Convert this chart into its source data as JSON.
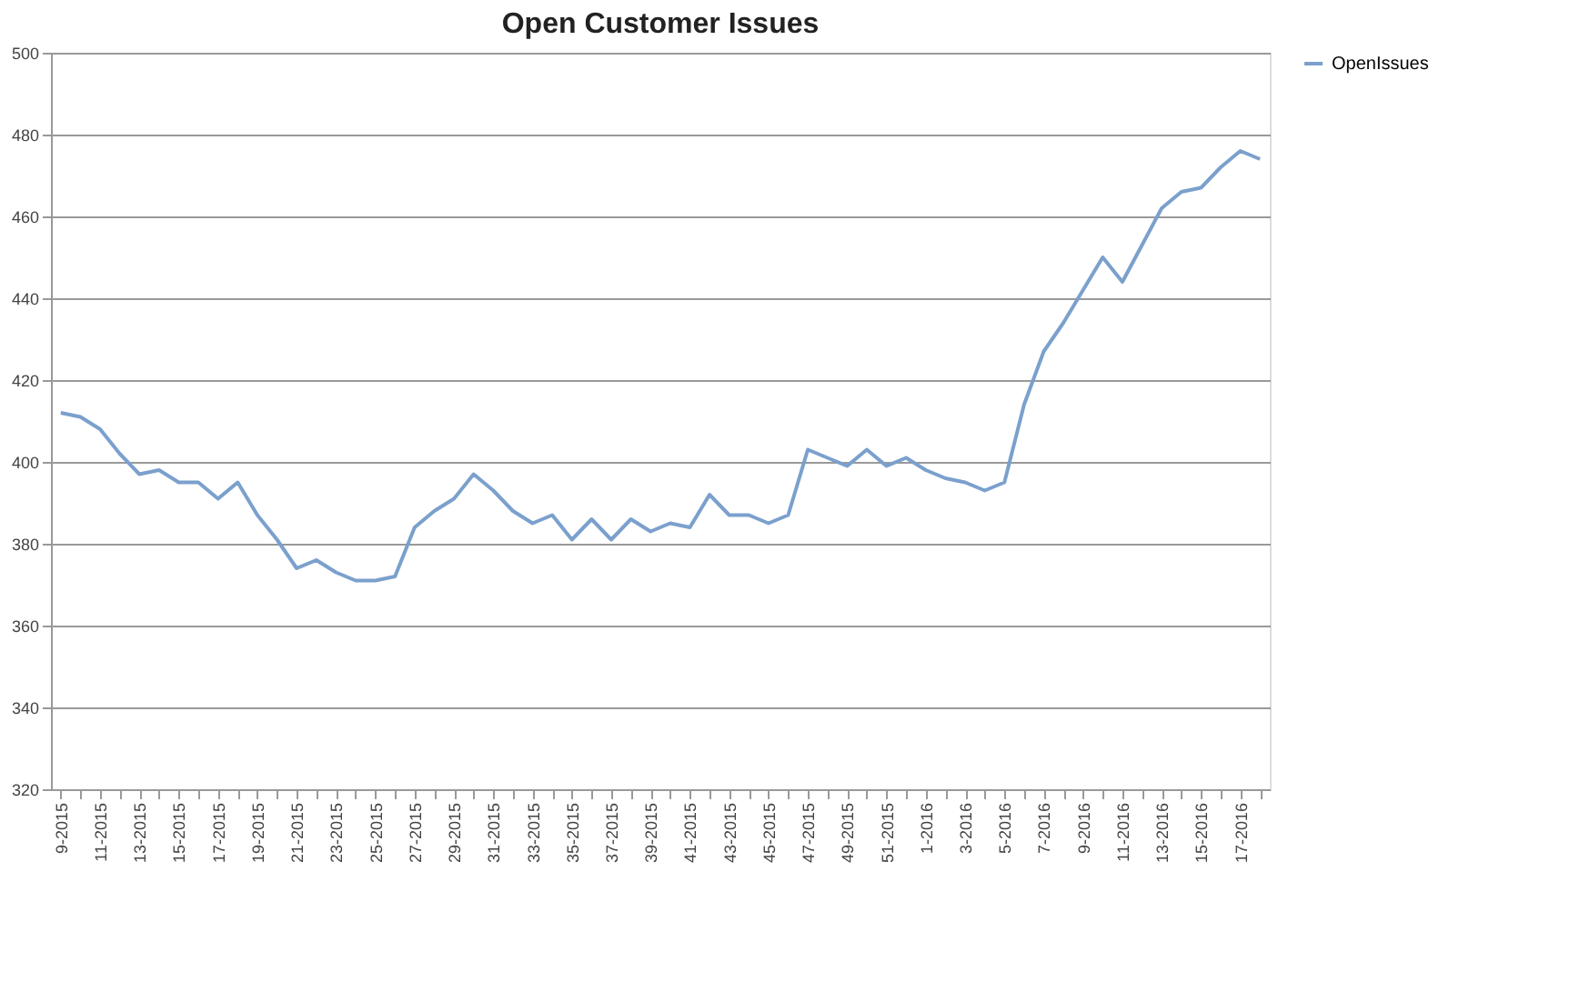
{
  "chart_data": {
    "type": "line",
    "title": "Open Customer Issues",
    "categories": [
      "9-2015",
      null,
      "11-2015",
      null,
      "13-2015",
      null,
      "15-2015",
      null,
      "17-2015",
      null,
      "19-2015",
      null,
      "21-2015",
      null,
      "23-2015",
      null,
      "25-2015",
      null,
      "27-2015",
      null,
      "29-2015",
      null,
      "31-2015",
      null,
      "33-2015",
      null,
      "35-2015",
      null,
      "37-2015",
      null,
      "39-2015",
      null,
      "41-2015",
      null,
      "43-2015",
      null,
      "45-2015",
      null,
      "47-2015",
      null,
      "49-2015",
      null,
      "51-2015",
      null,
      "1-2016",
      null,
      "3-2016",
      null,
      "5-2016",
      null,
      "7-2016",
      null,
      "9-2016",
      null,
      "11-2016",
      null,
      "13-2016",
      null,
      "15-2016",
      null,
      "17-2016",
      null
    ],
    "series": [
      {
        "name": "OpenIssues",
        "color": "#7ba0cd",
        "values": [
          412,
          411,
          408,
          402,
          397,
          398,
          395,
          395,
          391,
          395,
          387,
          381,
          374,
          376,
          373,
          371,
          371,
          372,
          384,
          388,
          391,
          397,
          393,
          388,
          385,
          387,
          381,
          386,
          381,
          386,
          383,
          385,
          384,
          392,
          387,
          387,
          385,
          387,
          403,
          401,
          399,
          403,
          399,
          401,
          398,
          396,
          395,
          393,
          395,
          414,
          427,
          434,
          442,
          450,
          444,
          453,
          462,
          466,
          467,
          472,
          476,
          474
        ]
      }
    ],
    "ylim": [
      320,
      500
    ],
    "yticks": [
      320,
      340,
      360,
      380,
      400,
      420,
      440,
      460,
      480,
      500
    ],
    "grid": "y",
    "legend": "right",
    "line_style": "solid",
    "marker": "none"
  }
}
